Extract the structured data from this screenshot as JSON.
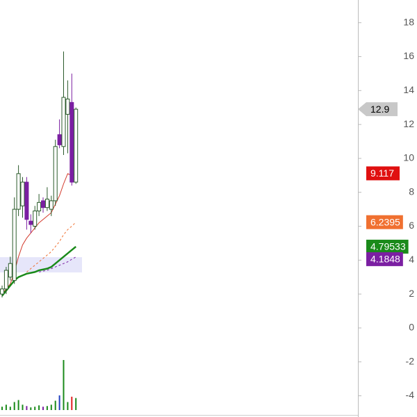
{
  "chart_data": {
    "type": "candlestick",
    "categories": [
      null,
      null,
      null,
      null,
      null,
      null,
      null,
      null,
      null,
      null,
      null,
      null,
      null,
      null,
      null,
      null,
      null,
      null,
      null
    ],
    "open": [
      2.0,
      2.3,
      3.0,
      2.8,
      7.0,
      7.2,
      8.6,
      6.3,
      6.0,
      6.9,
      7.5,
      7.1,
      7.0,
      7.5,
      11.4,
      10.7,
      12.6,
      13.3,
      8.6
    ],
    "high": [
      2.5,
      3.6,
      4.2,
      7.7,
      9.6,
      8.9,
      8.9,
      6.7,
      7.2,
      7.9,
      7.7,
      8.3,
      7.8,
      11.1,
      12.3,
      16.3,
      14.6,
      15.0,
      13.0
    ],
    "low": [
      1.8,
      2.0,
      2.8,
      2.6,
      6.6,
      6.5,
      5.8,
      5.6,
      5.8,
      6.6,
      6.8,
      6.9,
      6.6,
      7.2,
      10.6,
      10.2,
      10.3,
      8.4,
      8.5
    ],
    "close": [
      2.3,
      3.4,
      3.8,
      7.0,
      9.1,
      8.6,
      6.4,
      6.1,
      6.9,
      7.4,
      7.1,
      7.6,
      7.5,
      10.7,
      10.8,
      13.6,
      13.5,
      8.6,
      12.9
    ],
    "up_color": "#ffffff",
    "down_color": "#7b1fa2",
    "series": [
      {
        "name": null,
        "color": "#d33a2c",
        "dash": false,
        "width": 1,
        "values": [
          2.0,
          2.3,
          2.6,
          3.3,
          4.2,
          4.9,
          5.3,
          5.6,
          5.9,
          6.2,
          6.4,
          6.6,
          6.8,
          7.3,
          7.8,
          8.5,
          9.1,
          9.0,
          9.117
        ]
      },
      {
        "name": null,
        "color": "#f07030",
        "dash": true,
        "width": 1,
        "values": [
          null,
          null,
          null,
          null,
          null,
          null,
          3.3,
          3.5,
          3.7,
          3.9,
          4.1,
          4.3,
          4.5,
          4.8,
          5.1,
          5.5,
          5.8,
          6.0,
          6.2395
        ]
      },
      {
        "name": null,
        "color": "#1a8a1a",
        "dash": false,
        "width": 2.5,
        "values": [
          1.9,
          2.2,
          2.5,
          2.8,
          3.0,
          3.1,
          3.2,
          3.25,
          3.3,
          3.4,
          3.45,
          3.5,
          3.6,
          3.8,
          4.0,
          4.2,
          4.4,
          4.6,
          4.79533
        ]
      },
      {
        "name": null,
        "color": "#7b1fa2",
        "dash": true,
        "width": 1,
        "values": [
          null,
          null,
          null,
          null,
          null,
          null,
          null,
          null,
          null,
          3.3,
          3.35,
          3.4,
          3.5,
          3.6,
          3.7,
          3.8,
          3.9,
          4.05,
          4.1848
        ]
      }
    ],
    "volume": [
      5,
      8,
      5,
      12,
      15,
      8,
      6,
      4,
      5,
      7,
      5,
      6,
      8,
      14,
      22,
      75,
      12,
      20,
      18
    ],
    "volume_colors": [
      "#1a8a1a",
      "#1a8a1a",
      "#1a8a1a",
      "#1a8a1a",
      "#1a8a1a",
      "#1a8a1a",
      "#7b1fa2",
      "#1a8a1a",
      "#1a8a1a",
      "#1a8a1a",
      "#7b1fa2",
      "#1a8a1a",
      "#1a8a1a",
      "#1a8a1a",
      "#2040c0",
      "#1a8a1a",
      "#1a8a1a",
      "#e02020",
      "#1a8a1a"
    ],
    "price_labels": [
      {
        "value": 12.9,
        "color": "#c8c8c8",
        "text_color": "#000000"
      },
      {
        "value": 9.117,
        "color": "#e01010",
        "text_color": "#ffffff"
      },
      {
        "value": 6.2395,
        "color": "#f07030",
        "text_color": "#ffffff"
      },
      {
        "value": 4.79533,
        "color": "#1a8a1a",
        "text_color": "#ffffff"
      },
      {
        "value": 4.1848,
        "color": "#7b1fa2",
        "text_color": "#ffffff"
      }
    ],
    "ylim": [
      -5.25,
      19.34
    ],
    "yticks": [
      -4,
      -2,
      0,
      2,
      4,
      6,
      8,
      10,
      12,
      14,
      16,
      18
    ]
  }
}
